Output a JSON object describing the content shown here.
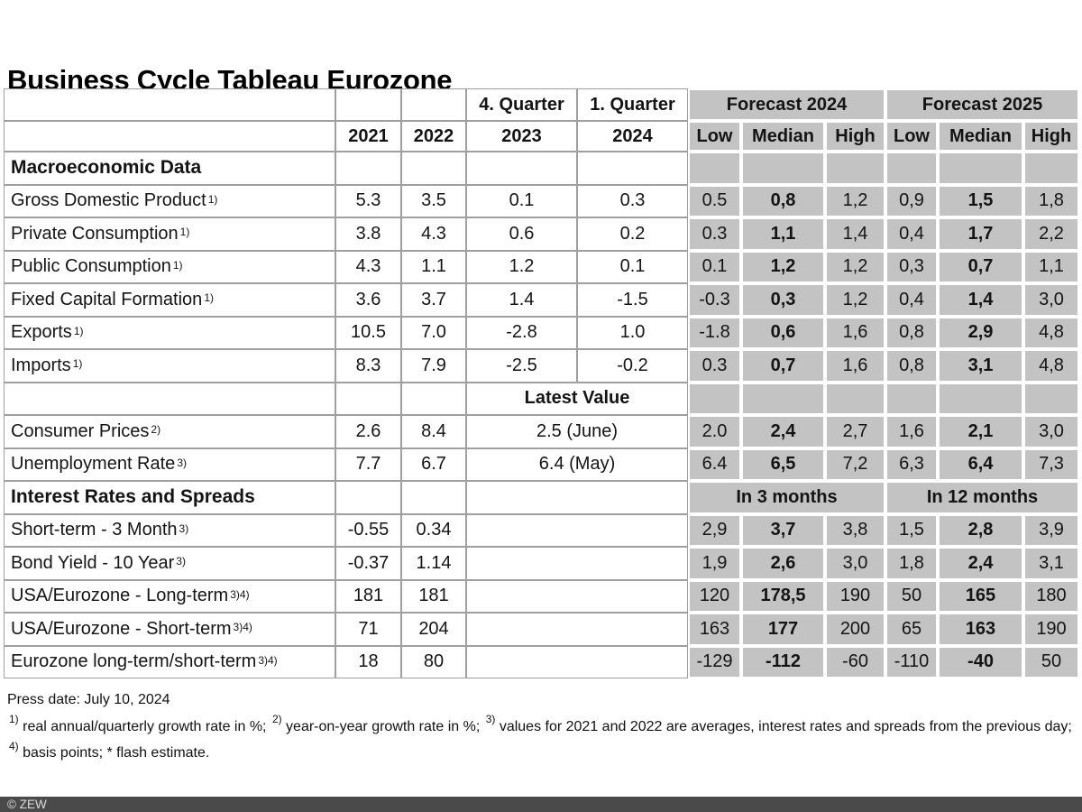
{
  "title": "Business Cycle Tableau Eurozone",
  "colors": {
    "forecast_bg": "#c3c3c3",
    "grid_line": "#a0a0a0",
    "footer_bar": "#4a4a4a"
  },
  "header": {
    "quarter_top": [
      "4. Quarter",
      "1. Quarter"
    ],
    "years": [
      "2021",
      "2022",
      "2023",
      "2024"
    ],
    "forecast_groups": [
      "Forecast 2024",
      "Forecast 2025"
    ],
    "forecast_sub": [
      "Low",
      "Median",
      "High",
      "Low",
      "Median",
      "High"
    ]
  },
  "rows": [
    {
      "type": "section",
      "label": "Macroeconomic Data"
    },
    {
      "type": "data",
      "label": "Gross Domestic Product",
      "sup": "1)",
      "y2021": "5.3",
      "y2022": "3.5",
      "q423": "0.1",
      "q124": "0.3",
      "forecast": [
        "0.5",
        "0,8",
        "1,2",
        "0,9",
        "1,5",
        "1,8"
      ]
    },
    {
      "type": "data",
      "label": "Private Consumption",
      "sup": "1)",
      "y2021": "3.8",
      "y2022": "4.3",
      "q423": "0.6",
      "q124": "0.2",
      "forecast": [
        "0.3",
        "1,1",
        "1,4",
        "0,4",
        "1,7",
        "2,2"
      ]
    },
    {
      "type": "data",
      "label": "Public Consumption",
      "sup": "1)",
      "y2021": "4.3",
      "y2022": "1.1",
      "q423": "1.2",
      "q124": "0.1",
      "forecast": [
        "0.1",
        "1,2",
        "1,2",
        "0,3",
        "0,7",
        "1,1"
      ]
    },
    {
      "type": "data",
      "label": "Fixed Capital Formation",
      "sup": "1)",
      "y2021": "3.6",
      "y2022": "3.7",
      "q423": "1.4",
      "q124": "-1.5",
      "forecast": [
        "-0.3",
        "0,3",
        "1,2",
        "0,4",
        "1,4",
        "3,0"
      ]
    },
    {
      "type": "data",
      "label": "Exports",
      "sup": "1)",
      "y2021": "10.5",
      "y2022": "7.0",
      "q423": "-2.8",
      "q124": "1.0",
      "forecast": [
        "-1.8",
        "0,6",
        "1,6",
        "0,8",
        "2,9",
        "4,8"
      ]
    },
    {
      "type": "data",
      "label": "Imports",
      "sup": "1)",
      "y2021": "8.3",
      "y2022": "7.9",
      "q423": "-2.5",
      "q124": "-0.2",
      "forecast": [
        "0.3",
        "0,7",
        "1,6",
        "0,8",
        "3,1",
        "4,8"
      ]
    },
    {
      "type": "latest-header",
      "label": "Latest Value"
    },
    {
      "type": "latest",
      "label": "Consumer Prices",
      "sup": "2)",
      "y2021": "2.6",
      "y2022": "8.4",
      "latest": "2.5 (June)",
      "forecast": [
        "2.0",
        "2,4",
        "2,7",
        "1,6",
        "2,1",
        "3,0"
      ]
    },
    {
      "type": "latest",
      "label": "Unemployment Rate",
      "sup": "3)",
      "y2021": "7.7",
      "y2022": "6.7",
      "latest": "6.4 (May)",
      "forecast": [
        "6.4",
        "6,5",
        "7,2",
        "6,3",
        "6,4",
        "7,3"
      ]
    },
    {
      "type": "section2",
      "label": "Interest Rates and Spreads",
      "forecast_headers": [
        "In 3 months",
        "In 12 months"
      ]
    },
    {
      "type": "spread",
      "label": "Short-term - 3 Month",
      "sup": "3)",
      "y2021": "-0.55",
      "y2022": "0.34",
      "forecast": [
        "2,9",
        "3,7",
        "3,8",
        "1,5",
        "2,8",
        "3,9"
      ]
    },
    {
      "type": "spread",
      "label": "Bond Yield - 10 Year",
      "sup": "3)",
      "y2021": "-0.37",
      "y2022": "1.14",
      "forecast": [
        "1,9",
        "2,6",
        "3,0",
        "1,8",
        "2,4",
        "3,1"
      ]
    },
    {
      "type": "spread",
      "label": "USA/Eurozone - Long-term",
      "sup": "3)4)",
      "y2021": "181",
      "y2022": "181",
      "forecast": [
        "120",
        "178,5",
        "190",
        "50",
        "165",
        "180"
      ]
    },
    {
      "type": "spread",
      "label": "USA/Eurozone - Short-term",
      "sup": "3)4)",
      "y2021": "71",
      "y2022": "204",
      "forecast": [
        "163",
        "177",
        "200",
        "65",
        "163",
        "190"
      ]
    },
    {
      "type": "spread",
      "label": "Eurozone long-term/short-term",
      "sup": "3)4)",
      "y2021": "18",
      "y2022": "80",
      "forecast": [
        "-129",
        "-112",
        "-60",
        "-110",
        "-40",
        "50"
      ]
    }
  ],
  "footer": {
    "press_date": "Press date: July 10, 2024",
    "footnotes": [
      {
        "sup": "1)",
        "text": " real annual/quarterly growth rate in %; "
      },
      {
        "sup": "2)",
        "text": " year-on-year growth rate in %; "
      },
      {
        "sup": "3)",
        "text": " values for 2021 and 2022 are averages, interest rates and spreads from the previous day; "
      },
      {
        "sup": "4)",
        "text": " basis points; * flash estimate."
      }
    ]
  },
  "copyright": "© ZEW"
}
